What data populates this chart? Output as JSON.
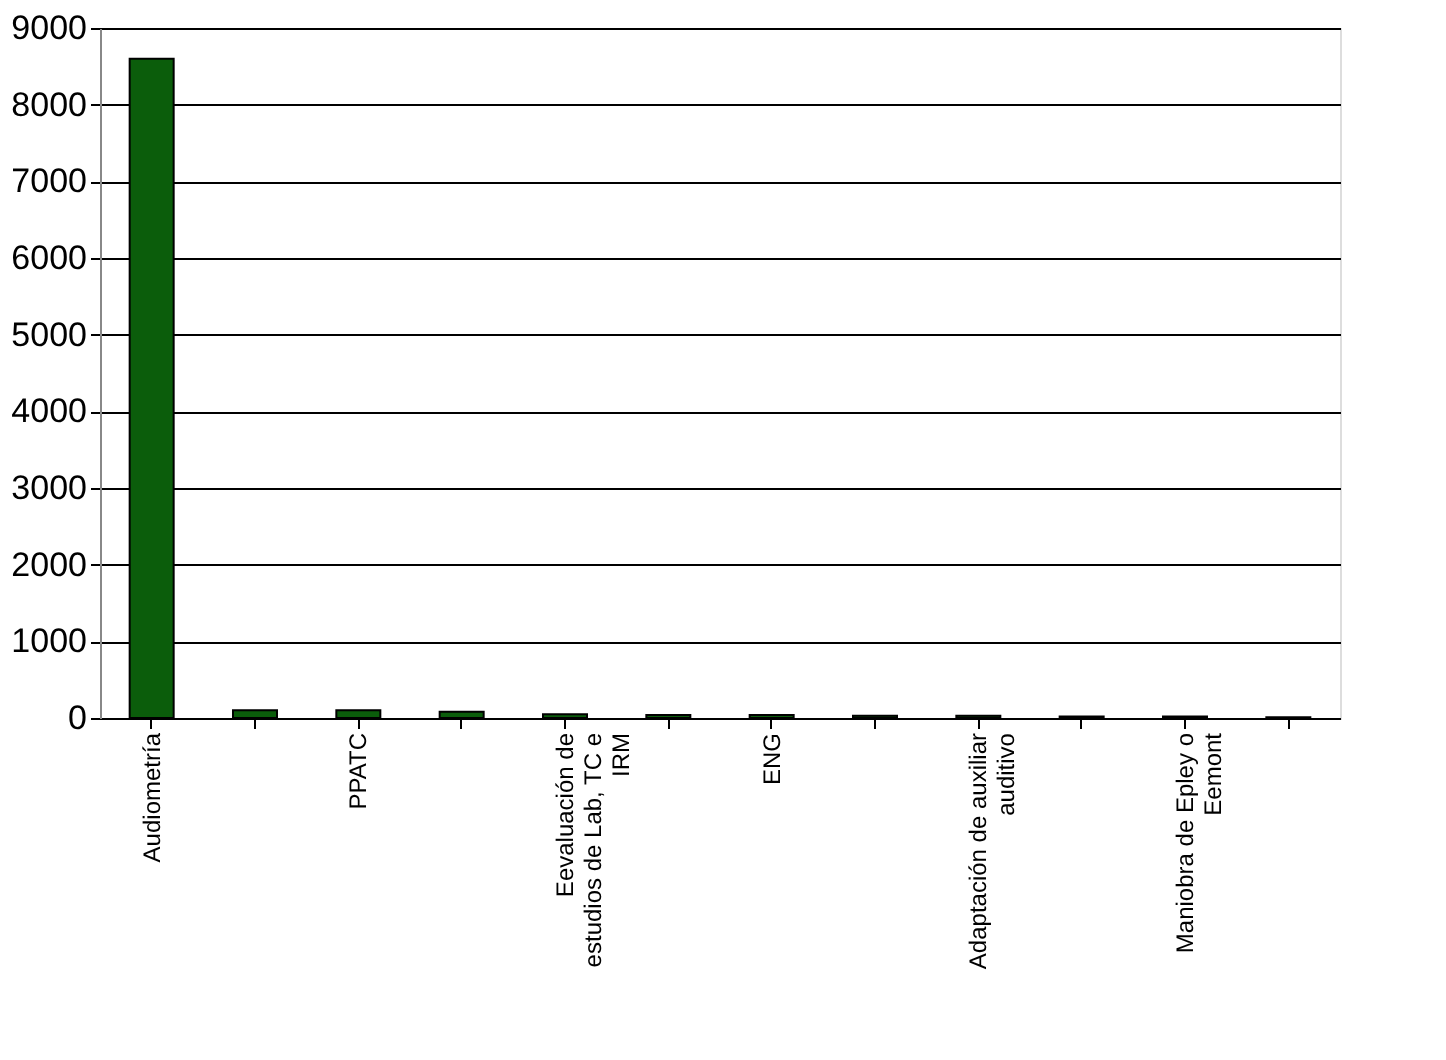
{
  "chart_data": {
    "type": "bar",
    "categories": [
      "Audiometría",
      null,
      "PPATC",
      null,
      "Eevaluación de estudios de Lab, TC e IRM",
      null,
      "ENG",
      null,
      "Adaptación de auxiliar auditivo",
      null,
      "Maniobra de Epley o Eemont",
      null
    ],
    "values": [
      8600,
      100,
      100,
      80,
      50,
      40,
      40,
      30,
      30,
      20,
      20,
      10
    ],
    "color": "#0b5d0b",
    "ylim": [
      0,
      9000
    ],
    "yticks": [
      0,
      1000,
      2000,
      3000,
      4000,
      5000,
      6000,
      7000,
      8000,
      9000
    ],
    "grid": "y"
  }
}
